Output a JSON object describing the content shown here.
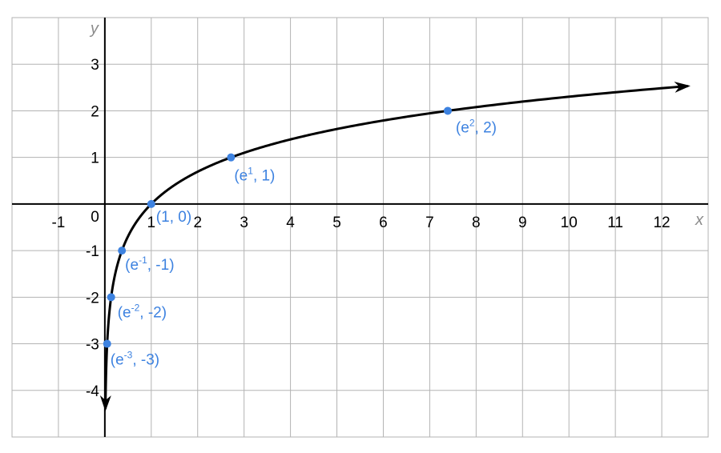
{
  "chart_data": {
    "type": "line",
    "title": "",
    "xlabel": "x",
    "ylabel": "y",
    "xlim": [
      -2,
      13
    ],
    "ylim": [
      -5,
      4
    ],
    "x_ticks": [
      -1,
      1,
      2,
      3,
      4,
      5,
      6,
      7,
      8,
      9,
      10,
      11,
      12
    ],
    "y_ticks": [
      -4,
      -3,
      -2,
      -1,
      1,
      2,
      3
    ],
    "origin_label": "0",
    "grid": true,
    "curve": {
      "function": "ln(x)",
      "x_start": 0.0125,
      "x_end": 12.55,
      "arrow_at_start": true,
      "arrow_at_end": true,
      "color": "#000000"
    },
    "points": [
      {
        "x": 0.0498,
        "y": -3,
        "label_base": "(e",
        "label_exp": "-3",
        "label_rest": ", -3)"
      },
      {
        "x": 0.1353,
        "y": -2,
        "label_base": "(e",
        "label_exp": "-2",
        "label_rest": ", -2)"
      },
      {
        "x": 0.3679,
        "y": -1,
        "label_base": "(e",
        "label_exp": "-1",
        "label_rest": ", -1)"
      },
      {
        "x": 1,
        "y": 0,
        "label_base": "(1, 0)",
        "label_exp": "",
        "label_rest": ""
      },
      {
        "x": 2.7183,
        "y": 1,
        "label_base": "(e",
        "label_exp": "1",
        "label_rest": ", 1)"
      },
      {
        "x": 7.389,
        "y": 2,
        "label_base": "(e",
        "label_exp": "2",
        "label_rest": ", 2)"
      }
    ],
    "point_color": "#3d82e0"
  }
}
